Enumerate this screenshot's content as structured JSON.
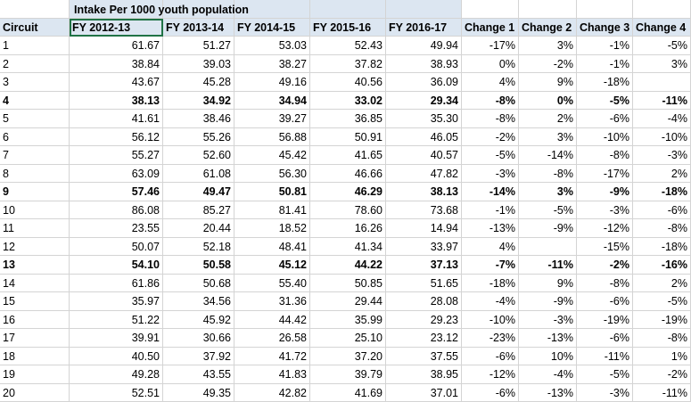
{
  "title": "Intake Per 1000 youth population",
  "headers": [
    "Circuit",
    "FY 2012-13",
    "FY 2013-14",
    "FY 2014-15",
    "FY 2015-16",
    "FY 2016-17",
    "Change 1",
    "Change 2",
    "Change  3",
    "Change 4"
  ],
  "rows": [
    {
      "circuit": "1",
      "values": [
        "61.67",
        "51.27",
        "53.03",
        "52.43",
        "49.94",
        "-17%",
        "3%",
        "-1%",
        "-5%"
      ],
      "bold": false
    },
    {
      "circuit": "2",
      "values": [
        "38.84",
        "39.03",
        "38.27",
        "37.82",
        "38.93",
        "0%",
        "-2%",
        "-1%",
        "3%"
      ],
      "bold": false
    },
    {
      "circuit": "3",
      "values": [
        "43.67",
        "45.28",
        "49.16",
        "40.56",
        "36.09",
        "4%",
        "9%",
        "-18%",
        ""
      ],
      "bold": false
    },
    {
      "circuit": "4",
      "values": [
        "38.13",
        "34.92",
        "34.94",
        "33.02",
        "29.34",
        "-8%",
        "0%",
        "-5%",
        "-11%"
      ],
      "bold": true
    },
    {
      "circuit": "5",
      "values": [
        "41.61",
        "38.46",
        "39.27",
        "36.85",
        "35.30",
        "-8%",
        "2%",
        "-6%",
        "-4%"
      ],
      "bold": false
    },
    {
      "circuit": "6",
      "values": [
        "56.12",
        "55.26",
        "56.88",
        "50.91",
        "46.05",
        "-2%",
        "3%",
        "-10%",
        "-10%"
      ],
      "bold": false
    },
    {
      "circuit": "7",
      "values": [
        "55.27",
        "52.60",
        "45.42",
        "41.65",
        "40.57",
        "-5%",
        "-14%",
        "-8%",
        "-3%"
      ],
      "bold": false
    },
    {
      "circuit": "8",
      "values": [
        "63.09",
        "61.08",
        "56.30",
        "46.66",
        "47.82",
        "-3%",
        "-8%",
        "-17%",
        "2%"
      ],
      "bold": false
    },
    {
      "circuit": "9",
      "values": [
        "57.46",
        "49.47",
        "50.81",
        "46.29",
        "38.13",
        "-14%",
        "3%",
        "-9%",
        "-18%"
      ],
      "bold": true
    },
    {
      "circuit": "10",
      "values": [
        "86.08",
        "85.27",
        "81.41",
        "78.60",
        "73.68",
        "-1%",
        "-5%",
        "-3%",
        "-6%"
      ],
      "bold": false
    },
    {
      "circuit": "11",
      "values": [
        "23.55",
        "20.44",
        "18.52",
        "16.26",
        "14.94",
        "-13%",
        "-9%",
        "-12%",
        "-8%"
      ],
      "bold": false
    },
    {
      "circuit": "12",
      "values": [
        "50.07",
        "52.18",
        "48.41",
        "41.34",
        "33.97",
        "4%",
        "",
        "-15%",
        "-18%"
      ],
      "bold": false
    },
    {
      "circuit": "13",
      "values": [
        "54.10",
        "50.58",
        "45.12",
        "44.22",
        "37.13",
        "-7%",
        "-11%",
        "-2%",
        "-16%"
      ],
      "bold": true
    },
    {
      "circuit": "14",
      "values": [
        "61.86",
        "50.68",
        "55.40",
        "50.85",
        "51.65",
        "-18%",
        "9%",
        "-8%",
        "2%"
      ],
      "bold": false
    },
    {
      "circuit": "15",
      "values": [
        "35.97",
        "34.56",
        "31.36",
        "29.44",
        "28.08",
        "-4%",
        "-9%",
        "-6%",
        "-5%"
      ],
      "bold": false
    },
    {
      "circuit": "16",
      "values": [
        "51.22",
        "45.92",
        "44.42",
        "35.99",
        "29.23",
        "-10%",
        "-3%",
        "-19%",
        "-19%"
      ],
      "bold": false
    },
    {
      "circuit": "17",
      "values": [
        "39.91",
        "30.66",
        "26.58",
        "25.10",
        "23.12",
        "-23%",
        "-13%",
        "-6%",
        "-8%"
      ],
      "bold": false
    },
    {
      "circuit": "18",
      "values": [
        "40.50",
        "37.92",
        "41.72",
        "37.20",
        "37.55",
        "-6%",
        "10%",
        "-11%",
        "1%"
      ],
      "bold": false
    },
    {
      "circuit": "19",
      "values": [
        "49.28",
        "43.55",
        "41.83",
        "39.79",
        "38.95",
        "-12%",
        "-4%",
        "-5%",
        "-2%"
      ],
      "bold": false
    },
    {
      "circuit": "20",
      "values": [
        "52.51",
        "49.35",
        "42.82",
        "41.69",
        "37.01",
        "-6%",
        "-13%",
        "-3%",
        "-11%"
      ],
      "bold": false
    }
  ]
}
